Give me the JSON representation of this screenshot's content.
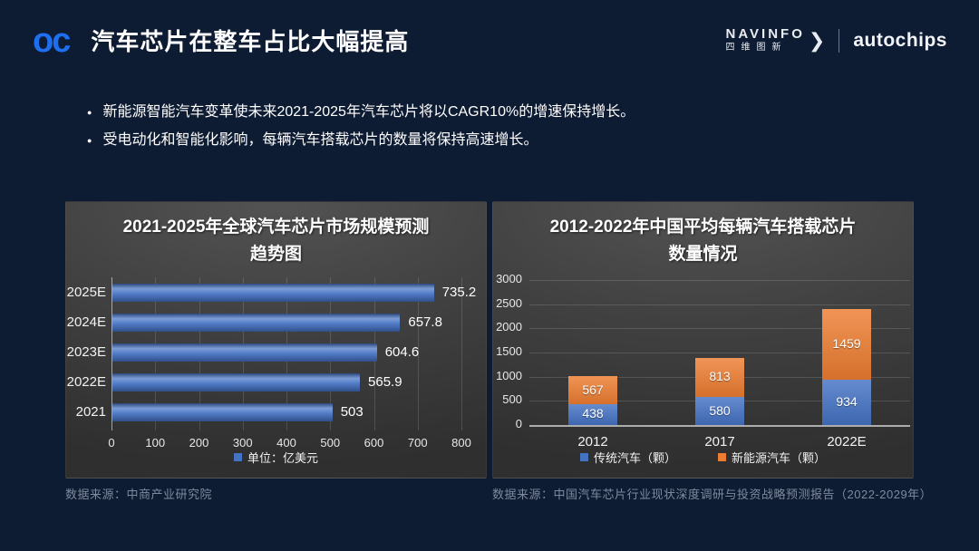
{
  "header": {
    "logo_text": "oc",
    "title": "汽车芯片在整车占比大幅提高",
    "brand": {
      "navinfo_en": "NAVINFO",
      "navinfo_cn": "四维图新",
      "autochips": "autochips"
    }
  },
  "bullets": [
    "新能源智能汽车变革使未来2021-2025年汽车芯片将以CAGR10%的增速保持增长。",
    "受电动化和智能化影响，每辆汽车搭载芯片的数量将保持高速增长。"
  ],
  "colors": {
    "background": "#0d1b33",
    "logo_blue": "#1d6ff0",
    "bar_blue": "#4472c4",
    "bar_orange": "#ed7d31"
  },
  "chart_data": [
    {
      "type": "bar",
      "orientation": "horizontal",
      "title_lines": [
        "2021-2025年全球汽车芯片市场规模预测",
        "趋势图"
      ],
      "categories": [
        "2025E",
        "2024E",
        "2023E",
        "2022E",
        "2021"
      ],
      "values": [
        735.2,
        657.8,
        604.6,
        565.9,
        503
      ],
      "value_labels": [
        "735.2",
        "657.8",
        "604.6",
        "565.9",
        "503"
      ],
      "bar_color": "#4472c4",
      "xlim": [
        0,
        800
      ],
      "x_ticks": [
        0,
        100,
        200,
        300,
        400,
        500,
        600,
        700,
        800
      ],
      "grid": true,
      "legend_position": "bottom",
      "legend": [
        {
          "label": "单位：亿美元",
          "color": "#4472c4"
        }
      ]
    },
    {
      "type": "bar",
      "subtype": "stacked-column",
      "title_lines": [
        "2012-2022年中国平均每辆汽车搭载芯片",
        "数量情况"
      ],
      "categories": [
        "2012",
        "2017",
        "2022E"
      ],
      "series": [
        {
          "name": "传统汽车（颗）",
          "color": "#4472c4",
          "values": [
            438,
            580,
            934
          ]
        },
        {
          "name": "新能源汽车（颗）",
          "color": "#ed7d31",
          "values": [
            567,
            813,
            1459
          ]
        }
      ],
      "totals": [
        1005,
        1393,
        2393
      ],
      "ylim": [
        0,
        3000
      ],
      "y_ticks": [
        0,
        500,
        1000,
        1500,
        2000,
        2500,
        3000
      ],
      "grid": true,
      "legend_position": "bottom"
    }
  ],
  "sources": {
    "left": "数据来源：中商产业研究院",
    "right": "数据来源：中国汽车芯片行业现状深度调研与投资战略预测报告（2022-2029年）"
  }
}
